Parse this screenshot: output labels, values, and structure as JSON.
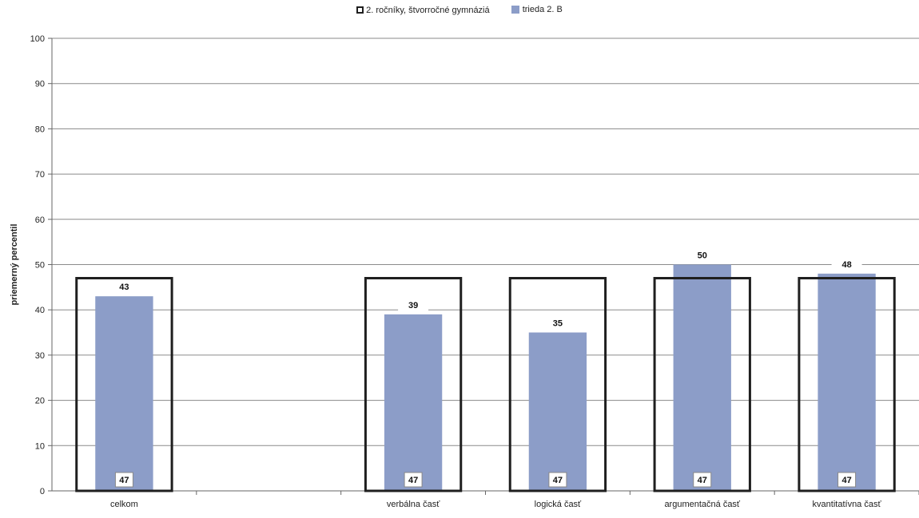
{
  "chart_data": {
    "type": "bar",
    "title": "",
    "xlabel": "",
    "ylabel": "priemerný percentil",
    "ylim": [
      0,
      100
    ],
    "yticks": [
      0,
      10,
      20,
      30,
      40,
      50,
      60,
      70,
      80,
      90,
      100
    ],
    "grid": true,
    "legend_position": "top-center",
    "categories": [
      "celkom",
      "",
      "verbálna časť",
      "logická časť",
      "argumentačná časť",
      "kvantitatívna časť"
    ],
    "series": [
      {
        "name": "2. ročníky, štvorročné gymnáziá",
        "style": "outline",
        "color": "#1f1f1f",
        "values": [
          47,
          null,
          47,
          47,
          47,
          47
        ]
      },
      {
        "name": "trieda  2. B",
        "style": "filled",
        "color": "#8c9dc8",
        "values": [
          43,
          null,
          39,
          35,
          50,
          48
        ]
      }
    ]
  }
}
